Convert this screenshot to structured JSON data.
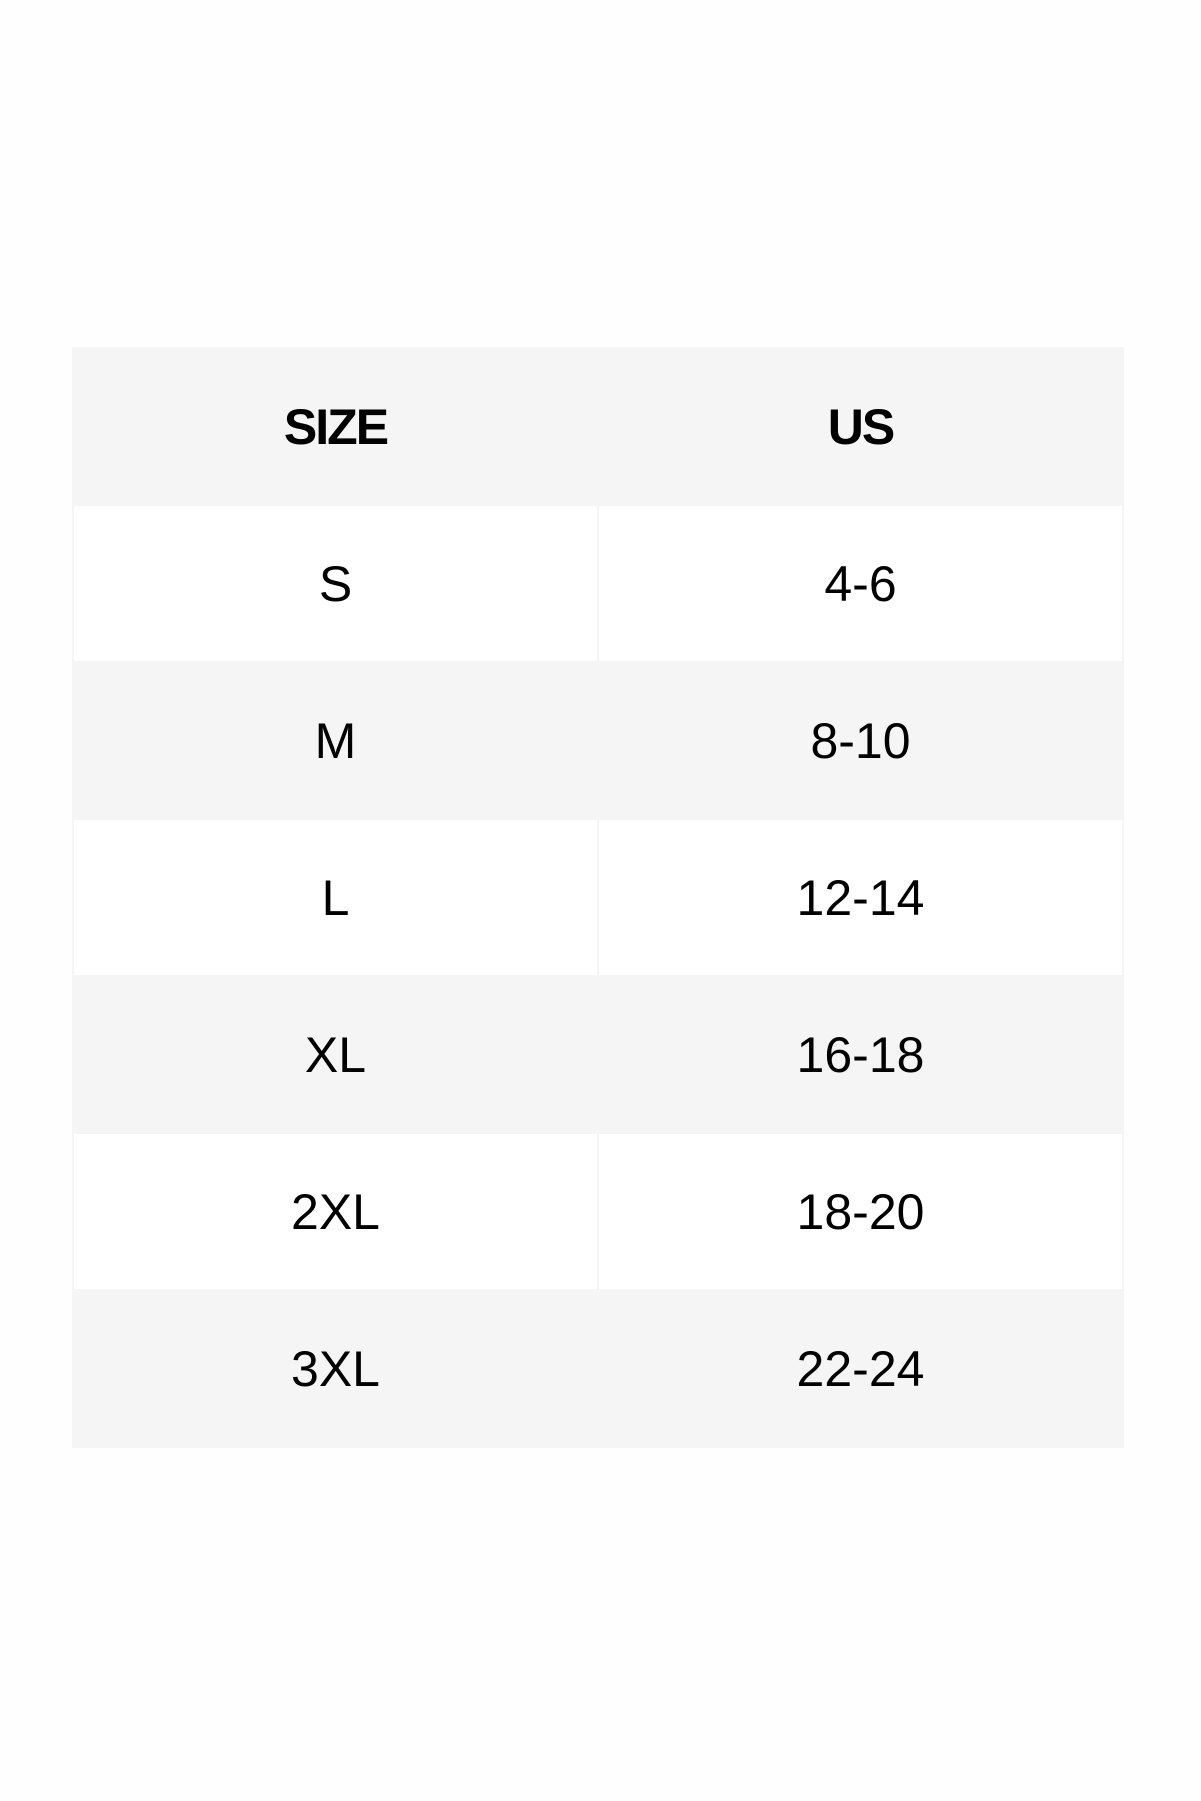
{
  "table": {
    "headers": [
      "SIZE",
      "US"
    ],
    "rows": [
      [
        "S",
        "4-6"
      ],
      [
        "M",
        "8-10"
      ],
      [
        "L",
        "12-14"
      ],
      [
        "XL",
        "16-18"
      ],
      [
        "2XL",
        "18-20"
      ],
      [
        "3XL",
        "22-24"
      ]
    ]
  },
  "colors": {
    "header_bg": "#f5f5f5",
    "alt_row_bg": "#f5f5f5",
    "row_bg": "#ffffff",
    "text": "#000000"
  }
}
